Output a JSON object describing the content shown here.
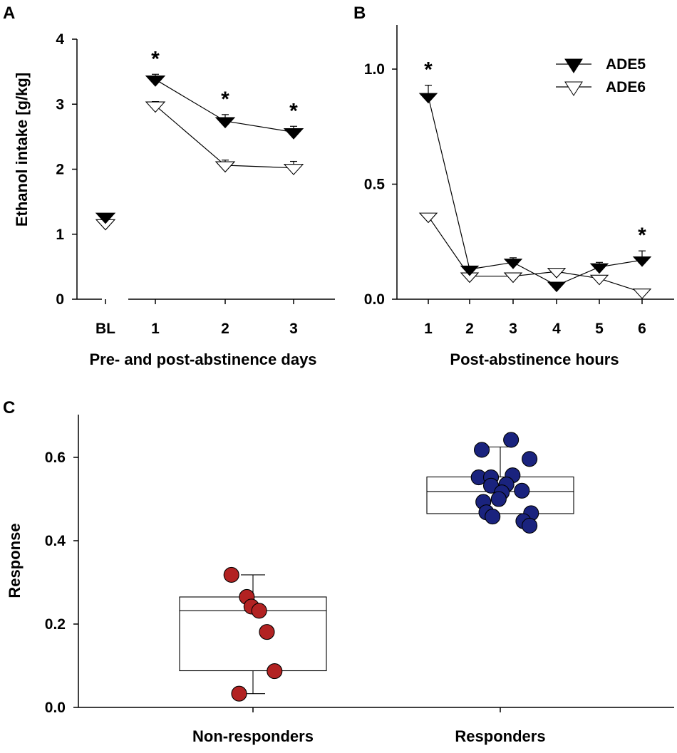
{
  "figure": {
    "panel_labels": [
      "A",
      "B",
      "C"
    ]
  },
  "chart_data": [
    {
      "panel": "A",
      "type": "line",
      "title": "",
      "xlabel": "Pre- and post-abstinence days",
      "ylabel": "Ethanol intake [g/kg]",
      "categories": [
        "BL",
        "1",
        "2",
        "3"
      ],
      "ylim": [
        0,
        4
      ],
      "yticks": [
        "0",
        "1",
        "2",
        "3",
        "4"
      ],
      "series": [
        {
          "name": "ADE5",
          "marker": "filled-down-triangle",
          "values": [
            1.27,
            3.38,
            2.74,
            2.57
          ],
          "errors": [
            0.03,
            0.08,
            0.1,
            0.09
          ]
        },
        {
          "name": "ADE6",
          "marker": "open-down-triangle",
          "values": [
            1.17,
            2.98,
            2.06,
            2.02
          ],
          "errors": [
            0.03,
            0.06,
            0.08,
            0.1
          ]
        }
      ],
      "connect_from_index": 1,
      "significance": [
        {
          "category": "1",
          "label": "*"
        },
        {
          "category": "2",
          "label": "*"
        },
        {
          "category": "3",
          "label": "*"
        }
      ]
    },
    {
      "panel": "B",
      "type": "line",
      "title": "",
      "xlabel": "Post-abstinence hours",
      "ylabel": "",
      "categories": [
        "1",
        "2",
        "3",
        "4",
        "5",
        "6"
      ],
      "ylim": [
        0,
        1.2
      ],
      "yticks": [
        "0.0",
        "0.5",
        "1.0"
      ],
      "legend": {
        "position": "top-right",
        "entries": [
          "ADE5",
          "ADE6"
        ]
      },
      "series": [
        {
          "name": "ADE5",
          "marker": "filled-down-triangle",
          "values": [
            0.88,
            0.13,
            0.16,
            0.06,
            0.14,
            0.17
          ],
          "errors": [
            0.05,
            0.01,
            0.02,
            0.01,
            0.02,
            0.04
          ]
        },
        {
          "name": "ADE6",
          "marker": "open-down-triangle",
          "values": [
            0.36,
            0.1,
            0.1,
            0.12,
            0.09,
            0.03
          ],
          "errors": [
            0.01,
            0.01,
            0.01,
            0.01,
            0.01,
            0.01
          ]
        }
      ],
      "significance": [
        {
          "category": "1",
          "label": "*"
        },
        {
          "category": "6",
          "label": "*"
        }
      ]
    },
    {
      "panel": "C",
      "type": "scatter",
      "subtype": "box-with-points",
      "title": "",
      "xlabel": "",
      "ylabel": "Response",
      "categories": [
        "Non-responders",
        "Responders"
      ],
      "ylim": [
        0,
        0.7
      ],
      "yticks": [
        "0.0",
        "0.2",
        "0.4",
        "0.6"
      ],
      "boxes": [
        {
          "group": "Non-responders",
          "whisker_low": 0.033,
          "q1": 0.088,
          "median": 0.232,
          "q3": 0.265,
          "whisker_high": 0.318,
          "point_color": "#b22222"
        },
        {
          "group": "Responders",
          "whisker_low": 0.465,
          "q1": 0.465,
          "median": 0.518,
          "q3": 0.553,
          "whisker_high": 0.625,
          "point_color": "#1a237e"
        }
      ],
      "points": [
        {
          "group": "Non-responders",
          "offset": -0.14,
          "value": 0.318
        },
        {
          "group": "Non-responders",
          "offset": -0.04,
          "value": 0.265
        },
        {
          "group": "Non-responders",
          "offset": -0.01,
          "value": 0.242
        },
        {
          "group": "Non-responders",
          "offset": 0.04,
          "value": 0.232
        },
        {
          "group": "Non-responders",
          "offset": 0.09,
          "value": 0.181
        },
        {
          "group": "Non-responders",
          "offset": 0.14,
          "value": 0.087
        },
        {
          "group": "Non-responders",
          "offset": -0.09,
          "value": 0.033
        },
        {
          "group": "Responders",
          "offset": -0.12,
          "value": 0.618
        },
        {
          "group": "Responders",
          "offset": 0.07,
          "value": 0.642
        },
        {
          "group": "Responders",
          "offset": 0.19,
          "value": 0.596
        },
        {
          "group": "Responders",
          "offset": -0.14,
          "value": 0.552
        },
        {
          "group": "Responders",
          "offset": -0.06,
          "value": 0.552
        },
        {
          "group": "Responders",
          "offset": 0.08,
          "value": 0.557
        },
        {
          "group": "Responders",
          "offset": 0.04,
          "value": 0.535
        },
        {
          "group": "Responders",
          "offset": 0.14,
          "value": 0.52
        },
        {
          "group": "Responders",
          "offset": -0.06,
          "value": 0.532
        },
        {
          "group": "Responders",
          "offset": 0.01,
          "value": 0.516
        },
        {
          "group": "Responders",
          "offset": -0.01,
          "value": 0.5
        },
        {
          "group": "Responders",
          "offset": -0.11,
          "value": 0.493
        },
        {
          "group": "Responders",
          "offset": -0.09,
          "value": 0.468
        },
        {
          "group": "Responders",
          "offset": -0.05,
          "value": 0.458
        },
        {
          "group": "Responders",
          "offset": 0.2,
          "value": 0.466
        },
        {
          "group": "Responders",
          "offset": 0.15,
          "value": 0.447
        },
        {
          "group": "Responders",
          "offset": 0.19,
          "value": 0.436
        }
      ]
    }
  ]
}
